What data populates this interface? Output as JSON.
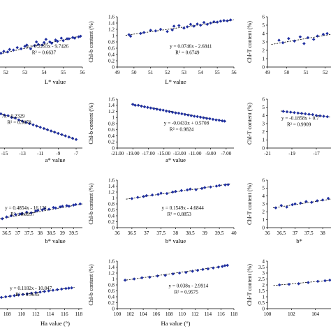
{
  "chart_data": [
    {
      "type": "scatter",
      "xlabel": "L* value",
      "ylabel": "",
      "x_ticks": [
        "52",
        "53",
        "54",
        "55",
        "56"
      ],
      "y_ticks": [],
      "xlim": [
        51.7,
        56
      ],
      "ylim": [
        0,
        8
      ],
      "equation": "y = 0.2293x - 9.7426",
      "r2": "R² = 0.6637",
      "points": [
        [
          51.75,
          2.2
        ],
        [
          51.9,
          2.5
        ],
        [
          52.1,
          2.4
        ],
        [
          52.2,
          2.8
        ],
        [
          52.4,
          2.7
        ],
        [
          52.6,
          3.1
        ],
        [
          52.8,
          2.9
        ],
        [
          53.0,
          3.3
        ],
        [
          53.1,
          3.5
        ],
        [
          53.3,
          2.9
        ],
        [
          53.5,
          3.4
        ],
        [
          53.6,
          4.0
        ],
        [
          53.7,
          3.6
        ],
        [
          53.9,
          3.5
        ],
        [
          54.0,
          3.9
        ],
        [
          54.1,
          4.4
        ],
        [
          54.3,
          4.0
        ],
        [
          54.4,
          3.8
        ],
        [
          54.6,
          4.3
        ],
        [
          54.7,
          4.1
        ],
        [
          54.9,
          4.6
        ],
        [
          55.0,
          4.2
        ],
        [
          55.2,
          4.5
        ],
        [
          55.3,
          4.5
        ],
        [
          55.5,
          4.7
        ],
        [
          55.6,
          4.6
        ],
        [
          55.8,
          4.8
        ],
        [
          55.9,
          4.9
        ]
      ],
      "trend": [
        [
          51.7,
          2.1
        ],
        [
          56,
          5.0
        ]
      ]
    },
    {
      "type": "scatter",
      "xlabel": "L* value",
      "ylabel": "Chl-b content (%)",
      "x_ticks": [
        "49",
        "50",
        "51",
        "52",
        "53",
        "54",
        "55",
        "56"
      ],
      "y_ticks": [
        "0",
        "0.2",
        "0.4",
        "0.6",
        "0.8",
        "1",
        "1.2",
        "1.4",
        "1.6"
      ],
      "xlim": [
        49,
        56
      ],
      "ylim": [
        0,
        1.6
      ],
      "equation": "y = 0.0746x - 2.6841",
      "r2": "R² = 0.6749",
      "points": [
        [
          49.7,
          1.03
        ],
        [
          49.8,
          0.98
        ],
        [
          50.4,
          1.07
        ],
        [
          50.6,
          1.1
        ],
        [
          51.0,
          1.17
        ],
        [
          51.3,
          1.15
        ],
        [
          51.6,
          1.2
        ],
        [
          52.0,
          1.13
        ],
        [
          52.3,
          1.18
        ],
        [
          52.4,
          1.3
        ],
        [
          52.7,
          1.32
        ],
        [
          53.0,
          1.24
        ],
        [
          53.2,
          1.28
        ],
        [
          53.4,
          1.36
        ],
        [
          53.6,
          1.3
        ],
        [
          53.8,
          1.37
        ],
        [
          54.0,
          1.33
        ],
        [
          54.2,
          1.42
        ],
        [
          54.4,
          1.36
        ],
        [
          54.6,
          1.4
        ],
        [
          54.8,
          1.44
        ],
        [
          55.0,
          1.43
        ],
        [
          55.2,
          1.46
        ],
        [
          55.4,
          1.48
        ],
        [
          55.6,
          1.47
        ],
        [
          55.8,
          1.5
        ]
      ],
      "trend": [
        [
          49.5,
          1.01
        ],
        [
          56,
          1.5
        ]
      ]
    },
    {
      "type": "scatter",
      "xlabel": "",
      "ylabel": "Chl-T content (%)",
      "x_ticks": [
        "49",
        "50",
        "51",
        "52"
      ],
      "y_ticks": [
        "0",
        "1",
        "2",
        "3",
        "4",
        "5",
        "6"
      ],
      "xlim": [
        49,
        52.3
      ],
      "ylim": [
        0,
        6
      ],
      "equation": "",
      "r2": "",
      "points": [
        [
          49.6,
          3.2
        ],
        [
          49.8,
          2.9
        ],
        [
          50.1,
          3.4
        ],
        [
          50.4,
          3.1
        ],
        [
          50.7,
          3.6
        ],
        [
          50.9,
          2.8
        ],
        [
          51.1,
          3.5
        ],
        [
          51.4,
          3.3
        ],
        [
          51.6,
          3.7
        ],
        [
          51.9,
          3.9
        ],
        [
          52.1,
          4.0
        ]
      ],
      "trend": [
        [
          49.2,
          2.7
        ],
        [
          52.3,
          3.9
        ]
      ]
    },
    {
      "type": "scatter",
      "xlabel": "a* value",
      "ylabel": "",
      "x_ticks": [
        "-15",
        "-13",
        "-11",
        "-9",
        "-7"
      ],
      "y_ticks": [],
      "xlim": [
        -15.5,
        -6.3
      ],
      "ylim": [
        0,
        8
      ],
      "equation": "7x - 0.2329",
      "r2": "R² = 0.9878",
      "points": [
        [
          -15.4,
          5.6
        ],
        [
          -15.0,
          5.4
        ],
        [
          -14.6,
          5.3
        ],
        [
          -14.2,
          5.0
        ],
        [
          -13.8,
          4.9
        ],
        [
          -13.4,
          4.6
        ],
        [
          -13.0,
          4.4
        ],
        [
          -12.6,
          4.2
        ],
        [
          -12.2,
          4.0
        ],
        [
          -11.8,
          3.8
        ],
        [
          -11.4,
          3.6
        ],
        [
          -11.0,
          3.4
        ],
        [
          -10.6,
          3.2
        ],
        [
          -10.2,
          3.0
        ],
        [
          -9.8,
          2.8
        ],
        [
          -9.4,
          2.6
        ],
        [
          -9.0,
          2.4
        ],
        [
          -8.6,
          2.2
        ],
        [
          -8.2,
          2.0
        ],
        [
          -7.8,
          1.8
        ],
        [
          -7.4,
          1.6
        ],
        [
          -7.0,
          1.4
        ]
      ],
      "trend": [
        [
          -15.5,
          5.7
        ],
        [
          -6.9,
          1.3
        ]
      ]
    },
    {
      "type": "scatter",
      "xlabel": "a* value",
      "ylabel": "Chl-b content (%)",
      "x_ticks": [
        "-21.00",
        "-19.00",
        "-17.00",
        "-15.00",
        "-13.00",
        "-11.00",
        "-9.00",
        "-7.00"
      ],
      "y_ticks": [
        "0",
        "0.2",
        "0.4",
        "0.6",
        "0.8",
        "1",
        "1.2",
        "1.4",
        "1.6"
      ],
      "xlim": [
        -21,
        -6
      ],
      "ylim": [
        0,
        1.6
      ],
      "equation": "y = -0.0433x + 0.5708",
      "r2": "R² = 0.9824",
      "points": [
        [
          -19.0,
          1.43
        ],
        [
          -18.7,
          1.4
        ],
        [
          -18.3,
          1.4
        ],
        [
          -17.9,
          1.37
        ],
        [
          -17.5,
          1.35
        ],
        [
          -17.1,
          1.33
        ],
        [
          -16.7,
          1.31
        ],
        [
          -16.3,
          1.29
        ],
        [
          -15.9,
          1.27
        ],
        [
          -15.5,
          1.25
        ],
        [
          -15.1,
          1.24
        ],
        [
          -14.7,
          1.21
        ],
        [
          -14.3,
          1.19
        ],
        [
          -13.9,
          1.17
        ],
        [
          -13.5,
          1.15
        ],
        [
          -13.1,
          1.14
        ],
        [
          -12.7,
          1.12
        ],
        [
          -12.3,
          1.1
        ],
        [
          -11.9,
          1.08
        ],
        [
          -11.5,
          1.06
        ],
        [
          -11.1,
          1.04
        ],
        [
          -10.7,
          1.03
        ],
        [
          -10.3,
          1.01
        ],
        [
          -9.9,
          0.99
        ],
        [
          -9.5,
          0.97
        ],
        [
          -9.1,
          0.96
        ],
        [
          -8.7,
          0.94
        ],
        [
          -8.3,
          0.92
        ],
        [
          -7.9,
          0.91
        ],
        [
          -7.5,
          0.89
        ],
        [
          -7.2,
          0.88
        ]
      ],
      "trend": [
        [
          -19.2,
          1.44
        ],
        [
          -7.0,
          0.87
        ]
      ]
    },
    {
      "type": "scatter",
      "xlabel": "",
      "ylabel": "Chl-T content (%)",
      "x_ticks": [
        "-21",
        "-19",
        "-17"
      ],
      "y_ticks": [
        "0",
        "1",
        "2",
        "3",
        "4",
        "5",
        "6"
      ],
      "xlim": [
        -21,
        -15.8
      ],
      "ylim": [
        0,
        6
      ],
      "equation": "y = -0.1858x + 0.7",
      "r2": "R² = 0.9909",
      "points": [
        [
          -19.7,
          4.5
        ],
        [
          -19.4,
          4.45
        ],
        [
          -19.1,
          4.4
        ],
        [
          -18.8,
          4.35
        ],
        [
          -18.5,
          4.3
        ],
        [
          -18.2,
          4.25
        ],
        [
          -17.9,
          4.2
        ],
        [
          -17.6,
          4.15
        ],
        [
          -17.3,
          4.1
        ],
        [
          -17.0,
          4.0
        ],
        [
          -16.7,
          3.95
        ],
        [
          -16.4,
          3.9
        ],
        [
          -16.1,
          3.85
        ]
      ],
      "trend": [
        [
          -19.9,
          4.55
        ],
        [
          -15.8,
          3.8
        ]
      ]
    },
    {
      "type": "scatter",
      "xlabel": "b* value",
      "ylabel": "",
      "x_ticks": [
        "36.5",
        "37",
        "37.5",
        "38",
        "38.5",
        "39",
        "39.5"
      ],
      "y_ticks": [],
      "xlim": [
        36.2,
        39.9
      ],
      "ylim": [
        0,
        8
      ],
      "equation": "y = 0.4854x - 16.131",
      "r2": "R² = 0.8937",
      "points": [
        [
          36.3,
          1.5
        ],
        [
          36.5,
          1.8
        ],
        [
          36.7,
          2.0
        ],
        [
          36.9,
          2.2
        ],
        [
          37.1,
          2.3
        ],
        [
          37.2,
          2.4
        ],
        [
          37.4,
          2.6
        ],
        [
          37.6,
          2.5
        ],
        [
          37.8,
          2.8
        ],
        [
          37.9,
          2.9
        ],
        [
          38.1,
          3.0
        ],
        [
          38.2,
          3.2
        ],
        [
          38.4,
          3.1
        ],
        [
          38.6,
          3.4
        ],
        [
          38.7,
          3.3
        ],
        [
          38.9,
          3.5
        ],
        [
          39.0,
          3.6
        ],
        [
          39.2,
          3.7
        ],
        [
          39.3,
          3.6
        ],
        [
          39.5,
          3.8
        ],
        [
          39.6,
          3.9
        ],
        [
          39.8,
          4.0
        ]
      ],
      "trend": [
        [
          36.2,
          1.5
        ],
        [
          39.9,
          4.0
        ]
      ]
    },
    {
      "type": "scatter",
      "xlabel": "b* value",
      "ylabel": "Chl-b content (%)",
      "x_ticks": [
        "36",
        "36.5",
        "37",
        "37.5",
        "38",
        "38.5",
        "39",
        "39.5",
        "40"
      ],
      "y_ticks": [
        "0",
        "0.2",
        "0.4",
        "0.6",
        "0.8",
        "1",
        "1.2",
        "1.4",
        "1.6"
      ],
      "xlim": [
        36,
        40
      ],
      "ylim": [
        0,
        1.6
      ],
      "equation": "y = 0.1549x - 4.6844",
      "r2": "R² = 0.8853",
      "points": [
        [
          36.5,
          0.98
        ],
        [
          36.7,
          1.02
        ],
        [
          36.9,
          1.05
        ],
        [
          37.0,
          1.08
        ],
        [
          37.2,
          1.1
        ],
        [
          37.4,
          1.12
        ],
        [
          37.5,
          1.16
        ],
        [
          37.7,
          1.15
        ],
        [
          37.9,
          1.2
        ],
        [
          38.0,
          1.22
        ],
        [
          38.2,
          1.25
        ],
        [
          38.4,
          1.27
        ],
        [
          38.5,
          1.3
        ],
        [
          38.7,
          1.28
        ],
        [
          38.9,
          1.32
        ],
        [
          39.0,
          1.35
        ],
        [
          39.2,
          1.37
        ],
        [
          39.4,
          1.4
        ],
        [
          39.5,
          1.42
        ],
        [
          39.7,
          1.44
        ],
        [
          39.8,
          1.45
        ]
      ],
      "trend": [
        [
          36.3,
          0.96
        ],
        [
          39.9,
          1.48
        ]
      ]
    },
    {
      "type": "scatter",
      "xlabel": "b*",
      "ylabel": "Chl-T content (%)",
      "x_ticks": [
        "36",
        "36.5",
        "37",
        "37.5",
        "38"
      ],
      "y_ticks": [
        "0",
        "1",
        "2",
        "3",
        "4",
        "5",
        "6"
      ],
      "xlim": [
        36,
        38.3
      ],
      "ylim": [
        0,
        6
      ],
      "equation": "",
      "r2": "",
      "points": [
        [
          36.3,
          2.5
        ],
        [
          36.5,
          2.8
        ],
        [
          36.7,
          2.6
        ],
        [
          36.9,
          2.9
        ],
        [
          37.0,
          3.0
        ],
        [
          37.2,
          3.1
        ],
        [
          37.4,
          3.3
        ],
        [
          37.6,
          3.2
        ],
        [
          37.8,
          3.4
        ],
        [
          38.0,
          3.5
        ],
        [
          38.2,
          3.7
        ]
      ],
      "trend": [
        [
          36.2,
          2.5
        ],
        [
          38.3,
          3.6
        ]
      ]
    },
    {
      "type": "scatter",
      "xlabel": "Ha value (°)",
      "ylabel": "",
      "x_ticks": [
        "108",
        "110",
        "112",
        "114",
        "116",
        "118"
      ],
      "y_ticks": [],
      "xlim": [
        107,
        118.5
      ],
      "ylim": [
        0,
        8
      ],
      "equation": "y = 0.1182x - 10.847",
      "r2": "R² = 0.9645",
      "points": [
        [
          107.2,
          1.9
        ],
        [
          107.8,
          2.0
        ],
        [
          108.4,
          2.1
        ],
        [
          109.0,
          2.2
        ],
        [
          109.6,
          2.3
        ],
        [
          110.2,
          2.4
        ],
        [
          110.8,
          2.5
        ],
        [
          111.4,
          2.6
        ],
        [
          112.0,
          2.7
        ],
        [
          112.6,
          2.8
        ],
        [
          113.2,
          2.9
        ],
        [
          113.8,
          3.0
        ],
        [
          114.4,
          3.1
        ],
        [
          115.0,
          3.2
        ],
        [
          115.6,
          3.3
        ],
        [
          116.2,
          3.4
        ],
        [
          116.6,
          3.45
        ],
        [
          117.0,
          3.5
        ]
      ],
      "trend": [
        [
          107,
          1.85
        ],
        [
          117.4,
          3.6
        ]
      ]
    },
    {
      "type": "scatter",
      "xlabel": "Ha value (°)",
      "ylabel": "Chl-b content (%)",
      "x_ticks": [
        "100",
        "102",
        "104",
        "106",
        "108",
        "110",
        "112",
        "114",
        "116",
        "118"
      ],
      "y_ticks": [
        "0",
        "0.2",
        "0.4",
        "0.6",
        "0.8",
        "1",
        "1.2",
        "1.4",
        "1.6"
      ],
      "xlim": [
        100,
        118
      ],
      "ylim": [
        0,
        1.6
      ],
      "equation": "y = 0.038x - 2.9914",
      "r2": "R² = 0.9575",
      "points": [
        [
          101.2,
          0.96
        ],
        [
          102.6,
          1.0
        ],
        [
          103.8,
          1.04
        ],
        [
          105.0,
          1.06
        ],
        [
          106.2,
          1.1
        ],
        [
          107.4,
          1.12
        ],
        [
          108.6,
          1.17
        ],
        [
          109.6,
          1.2
        ],
        [
          110.6,
          1.22
        ],
        [
          111.6,
          1.26
        ],
        [
          112.4,
          1.29
        ],
        [
          113.2,
          1.32
        ],
        [
          114.0,
          1.34
        ],
        [
          114.8,
          1.37
        ],
        [
          115.6,
          1.4
        ],
        [
          116.2,
          1.42
        ],
        [
          116.6,
          1.45
        ],
        [
          117.0,
          1.46
        ]
      ],
      "trend": [
        [
          101,
          0.95
        ],
        [
          117.2,
          1.46
        ]
      ]
    },
    {
      "type": "scatter",
      "xlabel": "",
      "ylabel": "Chl-T content (%)",
      "x_ticks": [
        "100",
        "102",
        "104"
      ],
      "y_ticks": [
        "0",
        "0.5",
        "1",
        "1.5",
        "2",
        "2.5",
        "3",
        "3.5",
        "4"
      ],
      "xlim": [
        100,
        105.3
      ],
      "ylim": [
        0,
        4
      ],
      "equation": "",
      "r2": "",
      "points": [
        [
          101.0,
          2.0
        ],
        [
          101.8,
          2.05
        ],
        [
          102.6,
          2.1
        ],
        [
          103.4,
          2.2
        ],
        [
          104.2,
          2.3
        ],
        [
          104.8,
          2.35
        ],
        [
          105.2,
          2.4
        ]
      ],
      "trend": [
        [
          100.5,
          1.95
        ],
        [
          105.3,
          2.4
        ]
      ]
    }
  ]
}
